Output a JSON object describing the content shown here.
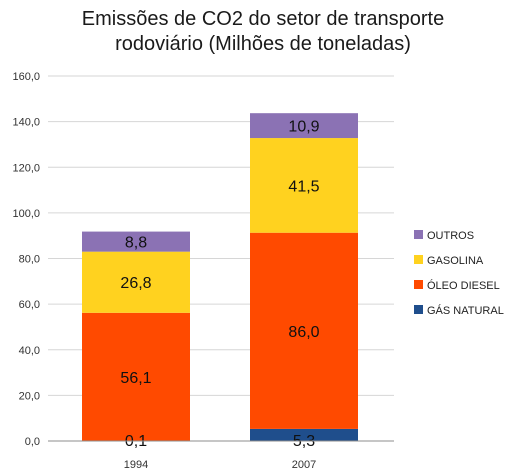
{
  "chart_data": {
    "type": "bar",
    "stacked": true,
    "title": [
      "Emissões de CO2 do setor de transporte",
      "rodoviário (Milhões de toneladas)"
    ],
    "categories": [
      "1994",
      "2007"
    ],
    "y_ticks": [
      "0,0",
      "20,0",
      "40,0",
      "60,0",
      "80,0",
      "100,0",
      "120,0",
      "140,0",
      "160,0"
    ],
    "ylim": [
      0,
      160
    ],
    "grid": true,
    "legend_position": "right",
    "series": [
      {
        "name": "GÁS NATURAL",
        "color": "#1f4e8c",
        "values": [
          0.1,
          5.3
        ],
        "labels": [
          "0,1",
          "5,3"
        ]
      },
      {
        "name": "ÓLEO DIESEL",
        "color": "#ff4a00",
        "values": [
          56.1,
          86.0
        ],
        "labels": [
          "56,1",
          "86,0"
        ]
      },
      {
        "name": "GASOLINA",
        "color": "#ffd21f",
        "values": [
          26.8,
          41.5
        ],
        "labels": [
          "26,8",
          "41,5"
        ]
      },
      {
        "name": "OUTROS",
        "color": "#8b72b4",
        "values": [
          8.8,
          10.9
        ],
        "labels": [
          "8,8",
          "10,9"
        ]
      }
    ]
  }
}
